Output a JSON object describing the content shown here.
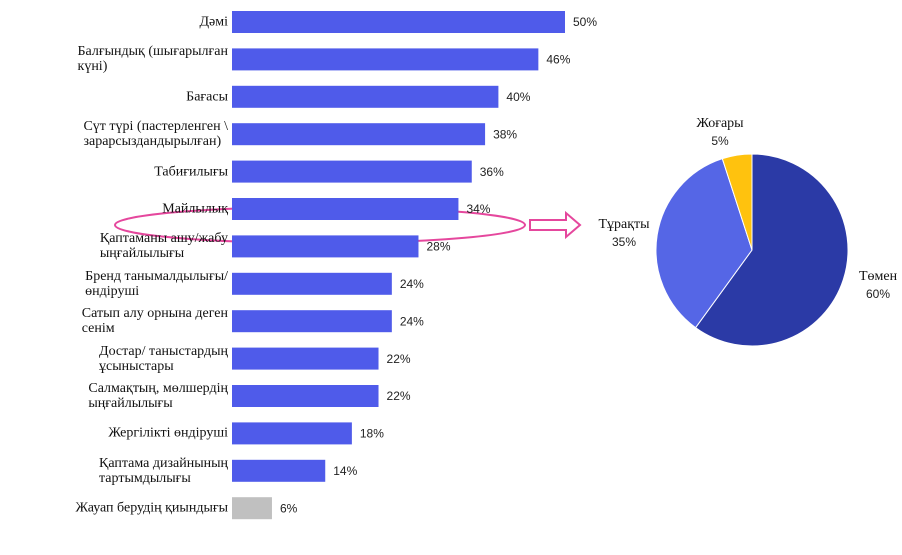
{
  "chart_data": [
    {
      "type": "hbar",
      "categories": [
        "Дәмі",
        "Балғындық (шығарылған\nкүні)",
        "Бағасы",
        "Сүт  түрі  (пастерленген \\\nзарарсыздандырылған)",
        "Табиғилығы",
        "Майлылық",
        "Қаптаманы ашу/жабу\nыңғайлылығы",
        "Бренд танымалдылығы/\nөндіруші",
        "Сатып алу орнына деген\nсенім",
        "Достар/ таныстардың\nұсыныстары",
        "Салмақтың, мөлшердің\nыңғайлылығы",
        "Жергілікті өндіруші",
        "Қаптама дизайнының\nтартымдылығы",
        "Жауап берудің қиындығы"
      ],
      "values": [
        50,
        46,
        40,
        38,
        36,
        34,
        28,
        24,
        24,
        22,
        22,
        18,
        14,
        6
      ],
      "value_labels": [
        "50%",
        "46%",
        "40%",
        "38%",
        "36%",
        "34%",
        "28%",
        "24%",
        "24%",
        "22%",
        "22%",
        "18%",
        "14%",
        "6%"
      ],
      "colors": [
        "#4f5bea",
        "#4f5bea",
        "#4f5bea",
        "#4f5bea",
        "#4f5bea",
        "#4f5bea",
        "#4f5bea",
        "#4f5bea",
        "#4f5bea",
        "#4f5bea",
        "#4f5bea",
        "#4f5bea",
        "#4f5bea",
        "#c0c0c0"
      ]
    },
    {
      "type": "pie",
      "categories": [
        "Төмен",
        "Тұрақты",
        "Жоғары"
      ],
      "values": [
        60,
        35,
        5
      ],
      "value_labels": [
        "60%",
        "35%",
        "5%"
      ],
      "colors": [
        "#2b3aa6",
        "#5566e6",
        "#ffc20e"
      ]
    }
  ]
}
